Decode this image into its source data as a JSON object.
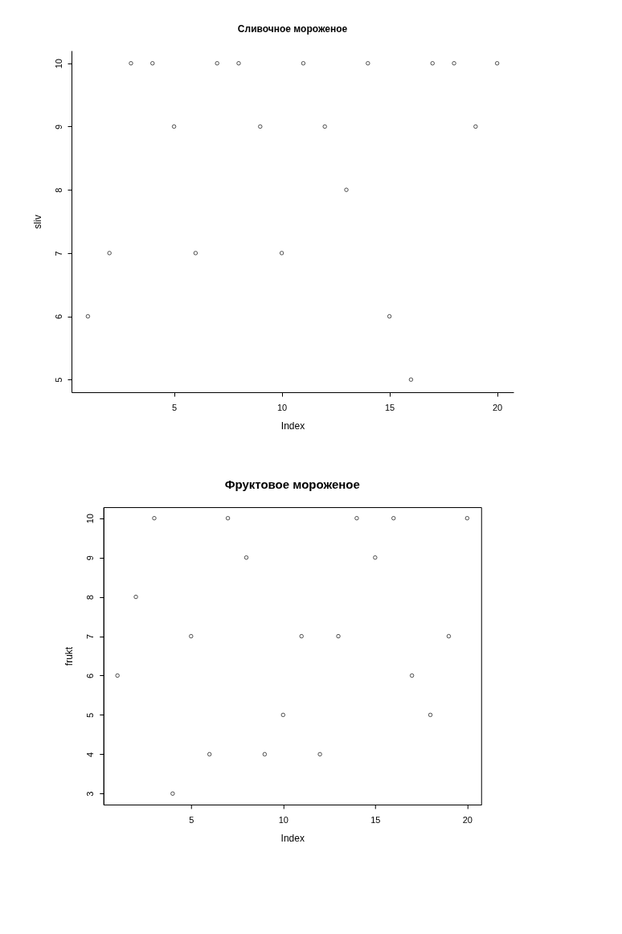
{
  "chart_data": [
    {
      "type": "scatter",
      "title": "Сливочное мороженое",
      "xlabel": "Index",
      "ylabel": "sliv",
      "x": [
        1,
        2,
        3,
        4,
        5,
        6,
        7,
        8,
        9,
        10,
        11,
        12,
        13,
        14,
        15,
        16,
        17,
        18,
        19,
        20
      ],
      "series": [
        {
          "color": "#000000",
          "values": [
            6,
            7,
            10,
            10,
            9,
            7,
            10,
            10,
            9,
            7,
            10,
            9,
            8,
            10,
            6,
            5,
            10,
            10,
            9,
            10
          ]
        }
      ],
      "xlim": [
        0.24,
        20.76
      ],
      "xticks": [
        5,
        10,
        15,
        20
      ],
      "ylim": [
        4.8,
        10.2
      ],
      "yticks": [
        5,
        6,
        7,
        8,
        9,
        10
      ],
      "marker": "circle",
      "grid": false
    },
    {
      "type": "scatter",
      "title": "Фруктовое мороженое",
      "xlabel": "Index",
      "ylabel": "frukt",
      "x": [
        1,
        2,
        3,
        4,
        5,
        6,
        7,
        8,
        9,
        10,
        11,
        12,
        13,
        14,
        15,
        16,
        17,
        18,
        19,
        20
      ],
      "series": [
        {
          "color": "#000000",
          "values": [
            6,
            8,
            10,
            3,
            7,
            4,
            10,
            9,
            4,
            5,
            7,
            4,
            7,
            10,
            9,
            10,
            6,
            5,
            7,
            10
          ]
        }
      ],
      "xlim": [
        0.24,
        20.76
      ],
      "xticks": [
        5,
        10,
        15,
        20
      ],
      "ylim": [
        2.72,
        10.28
      ],
      "yticks": [
        3,
        4,
        5,
        6,
        7,
        8,
        9,
        10
      ],
      "marker": "circle",
      "grid": false
    }
  ]
}
